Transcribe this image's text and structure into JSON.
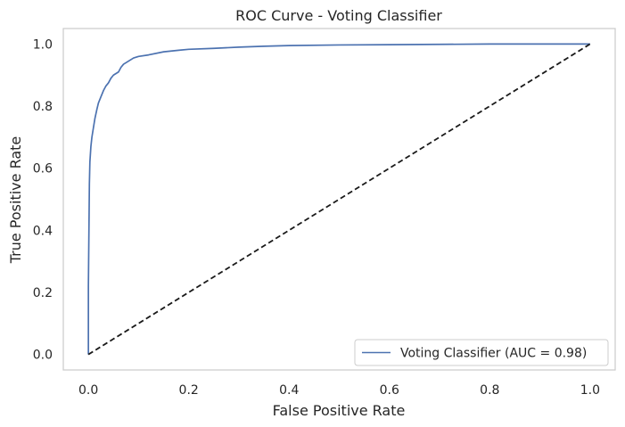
{
  "chart_data": {
    "type": "line",
    "title": "ROC Curve - Voting Classifier",
    "xlabel": "False Positive Rate",
    "ylabel": "True Positive Rate",
    "xlim": [
      -0.05,
      1.05
    ],
    "ylim": [
      -0.05,
      1.05
    ],
    "xticks": [
      "0.0",
      "0.2",
      "0.4",
      "0.6",
      "0.8",
      "1.0"
    ],
    "yticks": [
      "0.0",
      "0.2",
      "0.4",
      "0.6",
      "0.8",
      "1.0"
    ],
    "grid": false,
    "legend_position": "lower-right",
    "series": [
      {
        "name": "Voting Classifier (AUC = 0.98)",
        "color": "#4c72b0",
        "style": "solid",
        "x": [
          0.0,
          0.0,
          0.002,
          0.003,
          0.005,
          0.007,
          0.01,
          0.013,
          0.017,
          0.02,
          0.025,
          0.03,
          0.035,
          0.04,
          0.045,
          0.05,
          0.06,
          0.065,
          0.07,
          0.08,
          0.09,
          0.1,
          0.12,
          0.15,
          0.18,
          0.2,
          0.25,
          0.3,
          0.35,
          0.4,
          0.5,
          0.6,
          0.7,
          0.8,
          0.9,
          1.0
        ],
        "y": [
          0.0,
          0.22,
          0.55,
          0.62,
          0.67,
          0.7,
          0.73,
          0.76,
          0.79,
          0.81,
          0.83,
          0.85,
          0.865,
          0.875,
          0.89,
          0.9,
          0.91,
          0.925,
          0.935,
          0.945,
          0.955,
          0.96,
          0.965,
          0.975,
          0.98,
          0.983,
          0.986,
          0.99,
          0.993,
          0.995,
          0.997,
          0.998,
          0.999,
          1.0,
          1.0,
          1.0
        ]
      },
      {
        "name": "",
        "color": "#1a1a1a",
        "style": "dashed",
        "x": [
          0.0,
          1.0
        ],
        "y": [
          0.0,
          1.0
        ]
      }
    ]
  }
}
